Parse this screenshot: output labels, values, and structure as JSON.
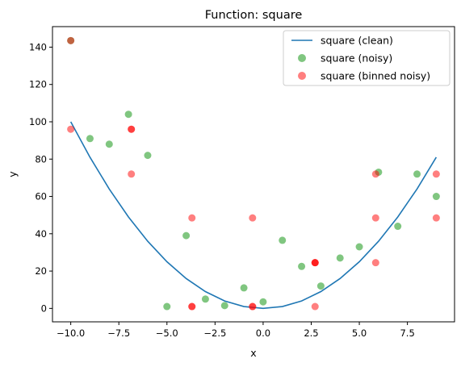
{
  "chart_data": {
    "type": "scatter",
    "title": "Function: square",
    "xlabel": "x",
    "ylabel": "y",
    "xlim": [
      -10.95,
      9.95
    ],
    "ylim": [
      -7.2,
      151
    ],
    "x_ticks": [
      -10.0,
      -7.5,
      -5.0,
      -2.5,
      0.0,
      2.5,
      5.0,
      7.5
    ],
    "x_tick_labels": [
      "−10.0",
      "−7.5",
      "−5.0",
      "−2.5",
      "0.0",
      "2.5",
      "5.0",
      "7.5"
    ],
    "y_ticks": [
      0,
      20,
      40,
      60,
      80,
      100,
      120,
      140
    ],
    "y_tick_labels": [
      "0",
      "20",
      "40",
      "60",
      "80",
      "100",
      "120",
      "140"
    ],
    "grid": false,
    "legend_position": "top-right",
    "series": [
      {
        "name": "square (clean)",
        "kind": "line",
        "color": "#1f77b4",
        "x": [
          -10,
          -9,
          -8,
          -7,
          -6,
          -5,
          -4,
          -3,
          -2,
          -1,
          0,
          1,
          2,
          3,
          4,
          5,
          6,
          7,
          8,
          9
        ],
        "y": [
          100,
          81,
          64,
          49,
          36,
          25,
          16,
          9,
          4,
          1,
          0,
          1,
          4,
          9,
          16,
          25,
          36,
          49,
          64,
          81
        ]
      },
      {
        "name": "square (noisy)",
        "kind": "scatter",
        "color": "#2ca02c",
        "alpha": 0.6,
        "x": [
          -10,
          -9,
          -8,
          -7,
          -6,
          -5,
          -4,
          -3,
          -2,
          -1,
          0,
          1,
          2,
          3,
          4,
          5,
          6,
          7,
          8,
          9
        ],
        "y": [
          143.5,
          91,
          88,
          104,
          82,
          1,
          39,
          5,
          1.5,
          11,
          3.5,
          36.5,
          22.5,
          12,
          27,
          33,
          73,
          44,
          72,
          60
        ]
      },
      {
        "name": "square (binned noisy)",
        "kind": "scatter",
        "color": "#ff0000",
        "alpha": 0.5,
        "x": [
          -10,
          -10,
          -6.85,
          -6.85,
          -6.85,
          -3.7,
          -3.7,
          -3.7,
          -0.55,
          -0.55,
          -0.55,
          2.7,
          2.7,
          2.7,
          2.7,
          5.85,
          5.85,
          5.85,
          9,
          9
        ],
        "y": [
          143.5,
          96,
          96,
          96,
          72,
          48.5,
          1,
          1,
          1,
          1,
          48.5,
          24.5,
          24.5,
          1,
          24.5,
          48.5,
          72,
          24.5,
          72,
          48.5
        ]
      }
    ]
  }
}
